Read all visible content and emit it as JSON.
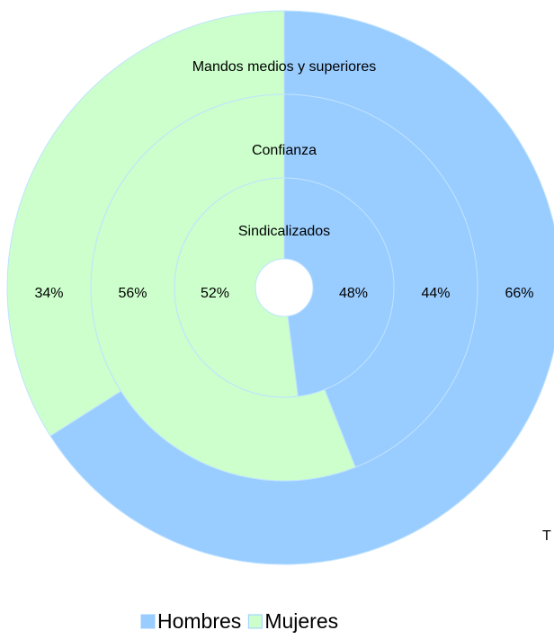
{
  "chart_data": {
    "type": "donut",
    "categories": [
      "Hombres",
      "Mujeres"
    ],
    "colors": [
      "#99ccff",
      "#ccffcc"
    ],
    "series": [
      {
        "name": "Sindicalizados",
        "values": [
          48,
          52
        ],
        "value_labels": [
          "48%",
          "52%"
        ]
      },
      {
        "name": "Confianza",
        "values": [
          44,
          56
        ],
        "value_labels": [
          "44%",
          "56%"
        ]
      },
      {
        "name": "Mandos medios y superiores",
        "values": [
          66,
          34
        ],
        "value_labels": [
          "66%",
          "34%"
        ]
      }
    ],
    "annotation": "T",
    "legend": "bottom"
  }
}
